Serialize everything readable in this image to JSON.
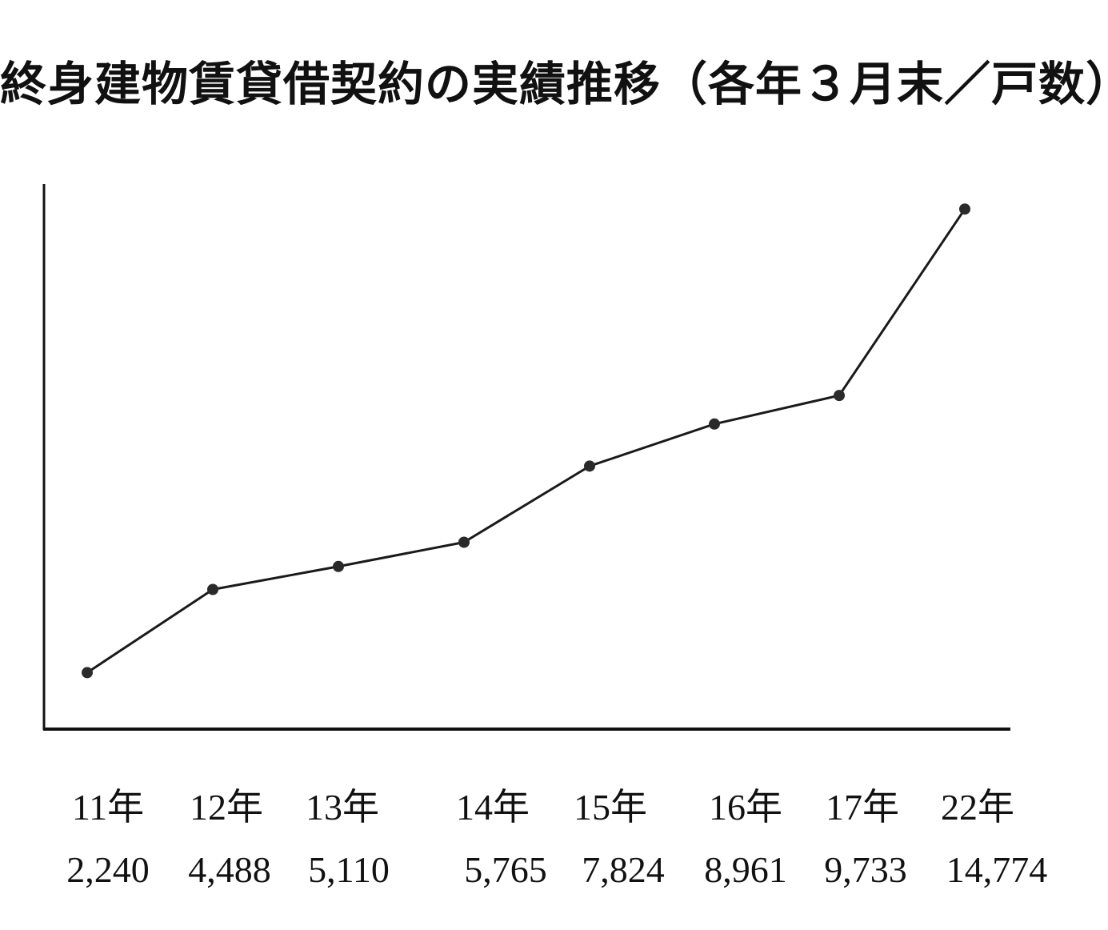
{
  "chart_data": {
    "type": "line",
    "title": "終身建物賃貸借契約の実績推移（各年３月末／戸数）",
    "categories": [
      "11年",
      "12年",
      "13年",
      "14年",
      "15年",
      "16年",
      "17年",
      "22年"
    ],
    "values": [
      2240,
      4488,
      5110,
      5765,
      7824,
      8961,
      9733,
      14774
    ],
    "value_labels": [
      "2,240",
      "4,488",
      "5,110",
      "5,765",
      "7,824",
      "8,961",
      "9,733",
      "14,774"
    ],
    "series": [
      {
        "values": [
          2240,
          4488,
          5110,
          5765,
          7824,
          8961,
          9733,
          14774
        ]
      }
    ],
    "xlabel": "",
    "ylabel": "",
    "grid": false,
    "legend": "none",
    "line_color": "#1a1a1a",
    "marker_color": "#2a2a2a"
  }
}
